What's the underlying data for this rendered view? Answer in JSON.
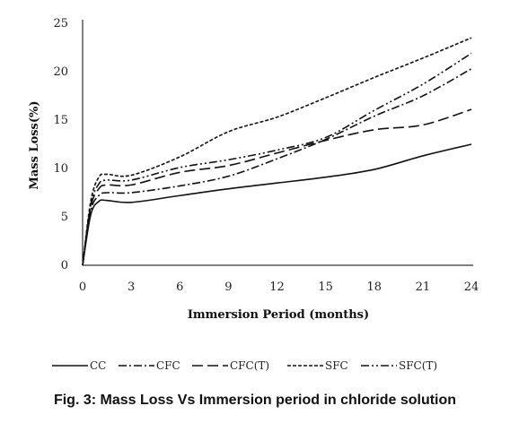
{
  "caption": "Fig. 3: Mass Loss Vs Immersion period in chloride solution",
  "chart_data": {
    "type": "line",
    "title": "",
    "xlabel": "Immersion Period (months)",
    "ylabel": "Mass Loss(%)",
    "xlim": [
      0,
      24
    ],
    "ylim": [
      0,
      25
    ],
    "x_ticks": [
      0,
      3,
      6,
      9,
      12,
      15,
      18,
      21,
      24
    ],
    "y_ticks": [
      0,
      5,
      10,
      15,
      20,
      25
    ],
    "grid": false,
    "legend_position": "bottom",
    "x": [
      0,
      0.5,
      1,
      1.5,
      3,
      6,
      9,
      12,
      15,
      18,
      21,
      24
    ],
    "series": [
      {
        "name": "CC",
        "dash": "",
        "values": [
          0,
          5.2,
          6.6,
          6.7,
          6.5,
          7.2,
          7.9,
          8.5,
          9.1,
          9.9,
          11.3,
          12.5
        ]
      },
      {
        "name": "CFC",
        "dash": "9,3,2,3",
        "values": [
          0,
          5.6,
          7.2,
          7.5,
          7.5,
          8.2,
          9.2,
          11.0,
          13.0,
          15.4,
          17.5,
          20.3
        ]
      },
      {
        "name": "CFC(T)",
        "dash": "12,5",
        "values": [
          0,
          6.0,
          7.9,
          8.3,
          8.3,
          9.6,
          10.3,
          11.6,
          12.9,
          14.0,
          14.5,
          16.1
        ]
      },
      {
        "name": "SFC",
        "dash": "4,2",
        "values": [
          0,
          6.6,
          9.1,
          9.4,
          9.3,
          11.2,
          13.8,
          15.3,
          17.3,
          19.4,
          21.4,
          23.5
        ]
      },
      {
        "name": "SFC(T)",
        "dash": "9,3,2,3,2,3",
        "values": [
          0,
          6.2,
          8.4,
          8.8,
          8.8,
          10.1,
          10.9,
          11.9,
          13.2,
          16.0,
          18.7,
          21.9
        ]
      }
    ]
  }
}
